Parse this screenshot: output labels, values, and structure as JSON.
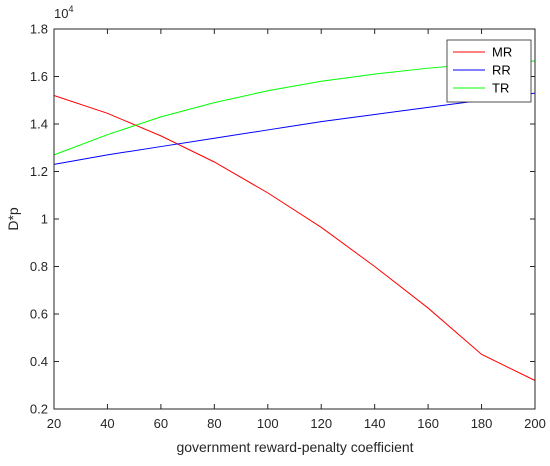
{
  "chart_data": {
    "type": "line",
    "title": "",
    "xlabel": "government reward-penalty coefficient",
    "ylabel": "D*p",
    "y_multiplier_base": "10",
    "y_multiplier_exponent": "4",
    "xlim": [
      20,
      200
    ],
    "ylim": [
      0.2,
      1.8
    ],
    "xticks": [
      20,
      40,
      60,
      80,
      100,
      120,
      140,
      160,
      180,
      200
    ],
    "yticks": [
      0.2,
      0.4,
      0.6,
      0.8,
      1.0,
      1.2,
      1.4,
      1.6,
      1.8
    ],
    "grid": false,
    "legend_position": "top-right",
    "x": [
      20,
      40,
      60,
      80,
      100,
      120,
      140,
      160,
      180,
      200
    ],
    "series": [
      {
        "name": "MR",
        "color": "#ff0000",
        "values": [
          1.52,
          1.445,
          1.35,
          1.24,
          1.11,
          0.965,
          0.8,
          0.625,
          0.43,
          0.32
        ]
      },
      {
        "name": "RR",
        "color": "#0000ff",
        "values": [
          1.23,
          1.27,
          1.305,
          1.34,
          1.375,
          1.41,
          1.44,
          1.47,
          1.5,
          1.53
        ]
      },
      {
        "name": "TR",
        "color": "#00ff00",
        "values": [
          1.27,
          1.355,
          1.43,
          1.49,
          1.54,
          1.58,
          1.61,
          1.635,
          1.655,
          1.665
        ]
      }
    ]
  }
}
